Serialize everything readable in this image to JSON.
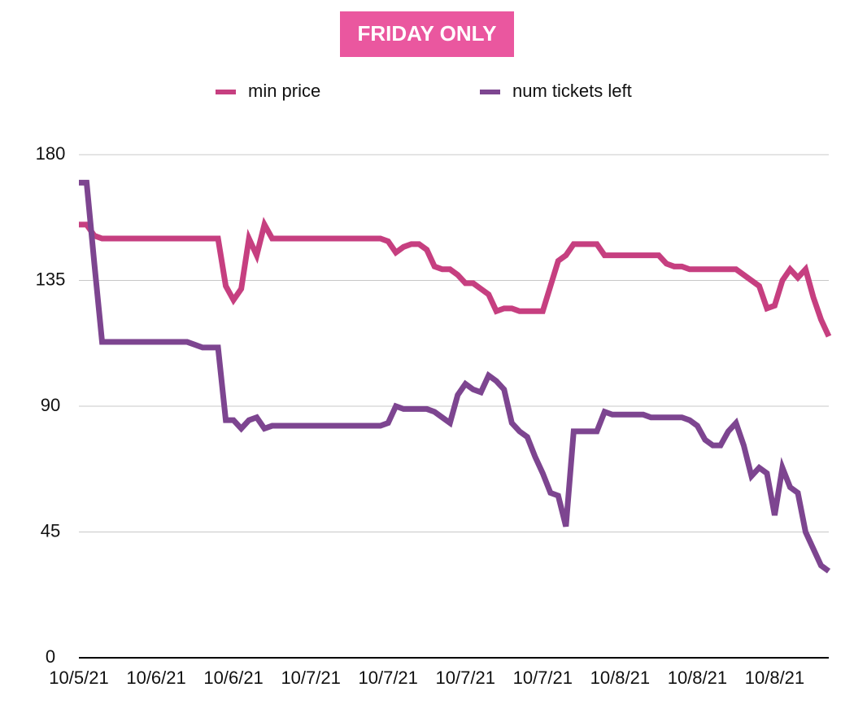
{
  "chart_data": {
    "type": "line",
    "title": "FRIDAY ONLY",
    "categories": [
      "10/5/21",
      null,
      null,
      null,
      null,
      null,
      null,
      null,
      null,
      null,
      "10/6/21",
      null,
      null,
      null,
      null,
      null,
      null,
      null,
      null,
      null,
      "10/6/21",
      null,
      null,
      null,
      null,
      null,
      null,
      null,
      null,
      null,
      "10/7/21",
      null,
      null,
      null,
      null,
      null,
      null,
      null,
      null,
      null,
      "10/7/21",
      null,
      null,
      null,
      null,
      null,
      null,
      null,
      null,
      null,
      "10/7/21",
      null,
      null,
      null,
      null,
      null,
      null,
      null,
      null,
      null,
      "10/7/21",
      null,
      null,
      null,
      null,
      null,
      null,
      null,
      null,
      null,
      "10/8/21",
      null,
      null,
      null,
      null,
      null,
      null,
      null,
      null,
      null,
      "10/8/21",
      null,
      null,
      null,
      null,
      null,
      null,
      null,
      null,
      null,
      "10/8/21",
      null,
      null,
      null,
      null,
      null,
      null,
      null
    ],
    "series": [
      {
        "name": "min price",
        "color": "#c63f80",
        "values": [
          155,
          155,
          151,
          150,
          150,
          150,
          150,
          150,
          150,
          150,
          150,
          150,
          150,
          150,
          150,
          150,
          150,
          150,
          150,
          133,
          128,
          132,
          150,
          144,
          155,
          150,
          150,
          150,
          150,
          150,
          150,
          150,
          150,
          150,
          150,
          150,
          150,
          150,
          150,
          150,
          149,
          145,
          147,
          148,
          148,
          146,
          140,
          139,
          139,
          137,
          134,
          134,
          132,
          130,
          124,
          125,
          125,
          124,
          124,
          124,
          124,
          133,
          142,
          144,
          148,
          148,
          148,
          148,
          144,
          144,
          144,
          144,
          144,
          144,
          144,
          144,
          141,
          140,
          140,
          139,
          139,
          139,
          139,
          139,
          139,
          139,
          137,
          135,
          133,
          125,
          126,
          135,
          139,
          136,
          139,
          129,
          121,
          115
        ]
      },
      {
        "name": "num tickets left",
        "color": "#7d4590",
        "values": [
          170,
          170,
          141,
          113,
          113,
          113,
          113,
          113,
          113,
          113,
          113,
          113,
          113,
          113,
          113,
          112,
          111,
          111,
          111,
          85,
          85,
          82,
          85,
          86,
          82,
          83,
          83,
          83,
          83,
          83,
          83,
          83,
          83,
          83,
          83,
          83,
          83,
          83,
          83,
          83,
          84,
          90,
          89,
          89,
          89,
          89,
          88,
          86,
          84,
          94,
          98,
          96,
          95,
          101,
          99,
          96,
          84,
          81,
          79,
          72,
          66,
          59,
          58,
          47,
          81,
          81,
          81,
          81,
          88,
          87,
          87,
          87,
          87,
          87,
          86,
          86,
          86,
          86,
          86,
          85,
          83,
          78,
          76,
          76,
          81,
          84,
          76,
          65,
          68,
          66,
          51,
          68,
          61,
          59,
          45,
          39,
          33,
          31
        ]
      }
    ],
    "ylim": [
      0,
      180
    ],
    "yticks": [
      0,
      45,
      90,
      135,
      180
    ],
    "grid": true,
    "legend": "top"
  }
}
